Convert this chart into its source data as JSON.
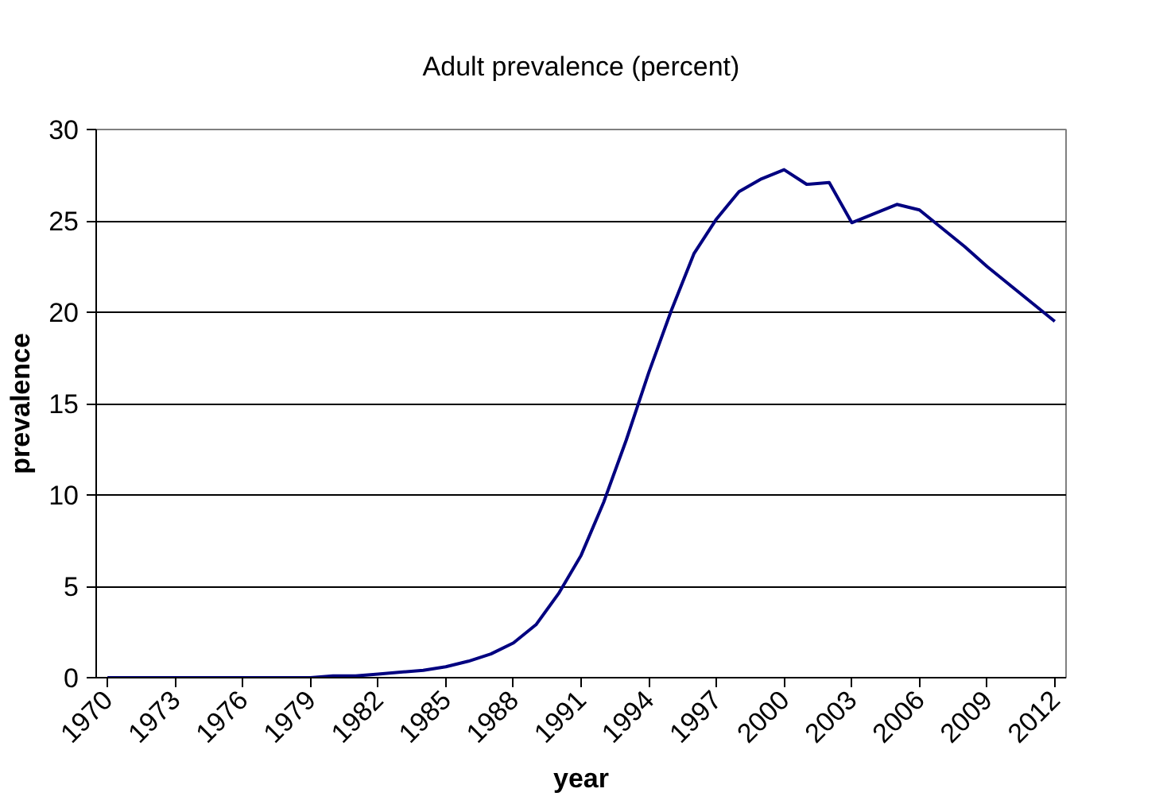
{
  "chart_data": {
    "type": "line",
    "title": "Adult prevalence (percent)",
    "xlabel": "year",
    "ylabel": "prevalence",
    "x": [
      1970,
      1971,
      1972,
      1973,
      1974,
      1975,
      1976,
      1977,
      1978,
      1979,
      1980,
      1981,
      1982,
      1983,
      1984,
      1985,
      1986,
      1987,
      1988,
      1989,
      1990,
      1991,
      1992,
      1993,
      1994,
      1995,
      1996,
      1997,
      1998,
      1999,
      2000,
      2001,
      2002,
      2003,
      2004,
      2005,
      2006,
      2007,
      2008,
      2009,
      2010,
      2011,
      2012
    ],
    "series": [
      {
        "color": "#000080",
        "values": [
          0,
          0,
          0,
          0,
          0,
          0,
          0,
          0,
          0,
          0,
          0.1,
          0.1,
          0.2,
          0.3,
          0.4,
          0.6,
          0.9,
          1.3,
          1.9,
          2.9,
          4.6,
          6.7,
          9.6,
          13.0,
          16.7,
          20.1,
          23.2,
          25.1,
          26.6,
          27.3,
          27.8,
          27.0,
          27.1,
          24.9,
          25.4,
          25.9,
          25.6,
          24.6,
          23.6,
          22.5,
          21.5,
          20.5,
          19.5
        ]
      }
    ],
    "xlim": [
      1969.5,
      2012.5
    ],
    "xticks": [
      1970,
      1973,
      1976,
      1979,
      1982,
      1985,
      1988,
      1991,
      1994,
      1997,
      2000,
      2003,
      2006,
      2009,
      2012
    ],
    "ylim": [
      0,
      30
    ],
    "yticks": [
      0,
      5,
      10,
      15,
      20,
      25,
      30
    ],
    "grid": "y",
    "marker": "none",
    "line_style": "solid"
  }
}
